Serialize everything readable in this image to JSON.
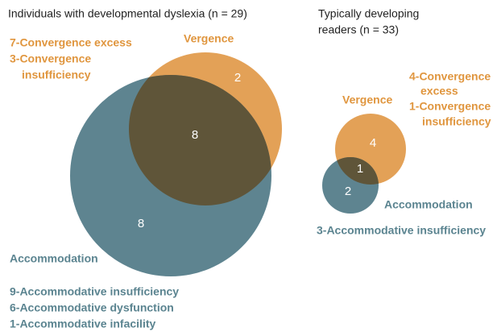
{
  "panels": [
    {
      "title": [
        "Individuals with developmental dyslexia (n = 29)"
      ],
      "vergence_label": "Vergence",
      "accommodation_label": "Accommodation",
      "counts": {
        "vergence_only": 2,
        "both": 8,
        "accommodation_only": 8
      },
      "vergence_notes": [
        "7-Convergence excess",
        "3-Convergence",
        "insufficiency"
      ],
      "accommodation_notes": [
        "9-Accommodative insufficiency",
        "6-Accommodative dysfunction",
        "1-Accommodative infacility"
      ]
    },
    {
      "title": [
        "Typically developing",
        "readers (n = 33)"
      ],
      "vergence_label": "Vergence",
      "accommodation_label": "Accommodation",
      "counts": {
        "vergence_only": 4,
        "both": 1,
        "accommodation_only": 2
      },
      "vergence_notes": [
        "4-Convergence",
        "excess",
        "1-Convergence",
        "insufficiency"
      ],
      "accommodation_notes": [
        "3-Accommodative insufficiency"
      ]
    }
  ]
}
